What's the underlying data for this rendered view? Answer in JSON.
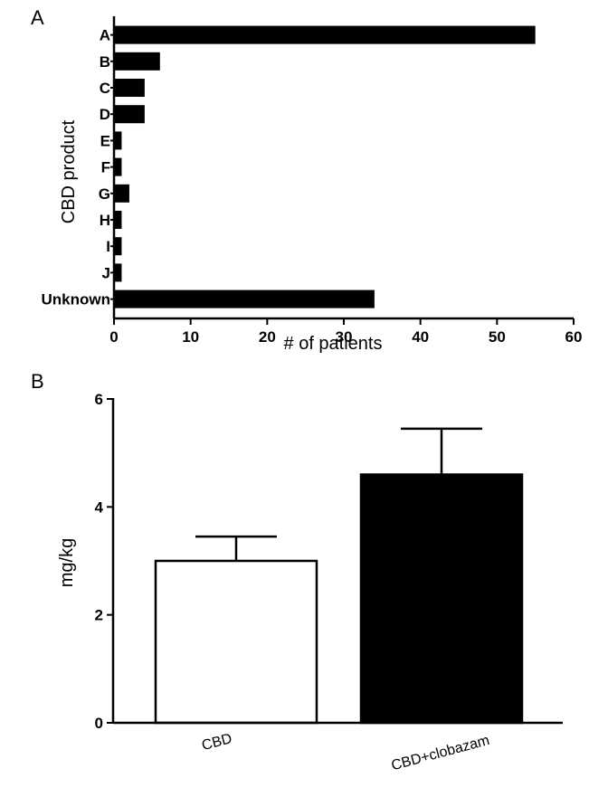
{
  "chart_data": [
    {
      "panel": "A",
      "type": "bar",
      "orientation": "horizontal",
      "categories": [
        "A",
        "B",
        "C",
        "D",
        "E",
        "F",
        "G",
        "H",
        "I",
        "J",
        "Unknown"
      ],
      "values": [
        55,
        6,
        4,
        4,
        1,
        1,
        2,
        1,
        1,
        1,
        34
      ],
      "xlabel": "# of patients",
      "ylabel": "CBD product",
      "xlim": [
        0,
        60
      ],
      "xticks": [
        "0",
        "10",
        "20",
        "30",
        "40",
        "50",
        "60"
      ],
      "bar_color": "#000000",
      "grid": false
    },
    {
      "panel": "B",
      "type": "bar",
      "orientation": "vertical",
      "categories": [
        "CBD",
        "CBD+clobazam"
      ],
      "values": [
        3.0,
        4.6
      ],
      "error": [
        0.45,
        0.85
      ],
      "ylabel": "mg/kg",
      "ylim": [
        0,
        6
      ],
      "yticks": [
        "0",
        "2",
        "4",
        "6"
      ],
      "bar_fill": [
        "#ffffff",
        "#000000"
      ],
      "bar_stroke": "#000000",
      "grid": false
    }
  ]
}
